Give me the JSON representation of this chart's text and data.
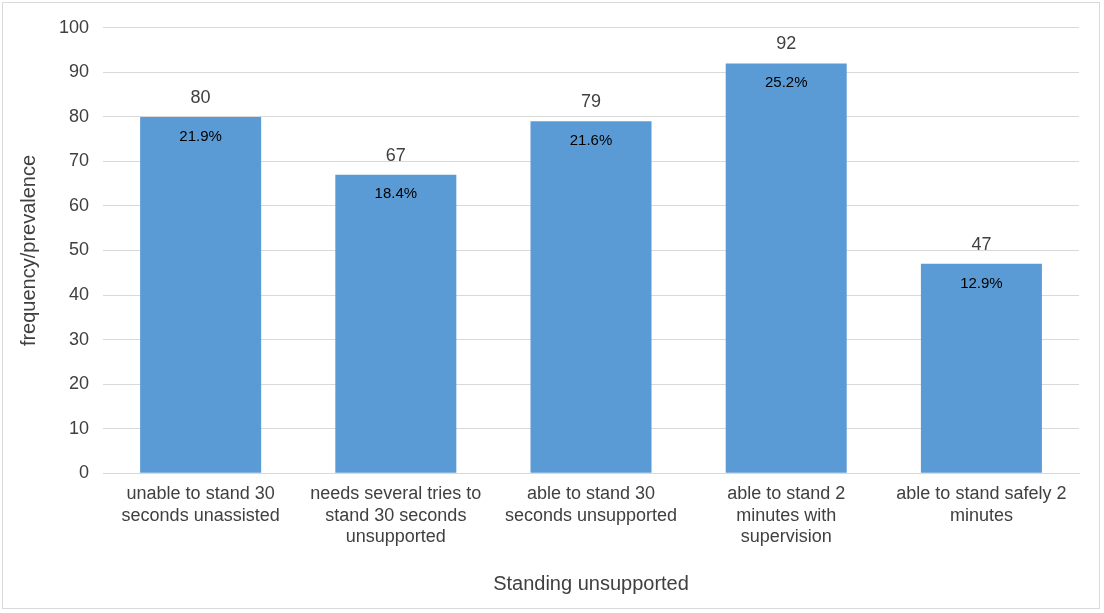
{
  "chart_data": {
    "type": "bar",
    "categories": [
      "unable to stand 30 seconds unassisted",
      "needs several tries to stand 30 seconds unsupported",
      "able to stand 30 seconds unsupported",
      "able to stand 2 minutes with supervision",
      "able to stand safely 2 minutes"
    ],
    "values": [
      80,
      67,
      79,
      92,
      47
    ],
    "color": "#5b9bd5",
    "xlabel": "Standing unsupported",
    "ylabel": "frequency/prevalence",
    "ylim": [
      0,
      100
    ],
    "yticks": [
      0,
      10,
      20,
      30,
      40,
      50,
      60,
      70,
      80,
      90,
      100
    ],
    "grid": "y",
    "legend": false,
    "data_labels": true,
    "annotations": [
      {
        "text": "21.9%",
        "x": "unable to stand 30 seconds unassisted",
        "y": 80
      },
      {
        "text": "18.4%",
        "x": "needs several tries to stand 30 seconds unsupported",
        "y": 67
      },
      {
        "text": "21.6%",
        "x": "able to stand 30 seconds unsupported",
        "y": 79
      },
      {
        "text": "25.2%",
        "x": "able to stand 2 minutes with supervision",
        "y": 92
      },
      {
        "text": "12.9%",
        "x": "able to stand safely 2 minutes",
        "y": 47
      }
    ]
  }
}
